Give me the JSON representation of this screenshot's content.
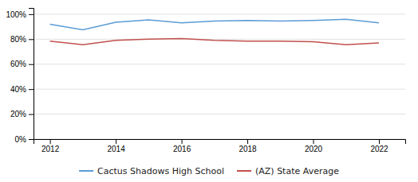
{
  "chart_data": {
    "type": "line",
    "x": [
      2012,
      2013,
      2014,
      2015,
      2016,
      2017,
      2018,
      2019,
      2020,
      2021,
      2022
    ],
    "series": [
      {
        "name": "Cactus Shadows High School",
        "color": "#5b9bd5",
        "values": [
          0.92,
          0.875,
          0.935,
          0.955,
          0.93,
          0.945,
          0.95,
          0.945,
          0.95,
          0.96,
          0.93
        ]
      },
      {
        "name": "(AZ) State Average",
        "color": "#c0504d",
        "values": [
          0.785,
          0.755,
          0.79,
          0.8,
          0.805,
          0.79,
          0.785,
          0.785,
          0.78,
          0.755,
          0.77
        ]
      }
    ],
    "xlim": [
      2011.5,
      2022.8
    ],
    "xticks": [
      2012,
      2014,
      2016,
      2018,
      2020,
      2022
    ],
    "ylim": [
      0.0,
      1.05
    ],
    "yticks": [
      {
        "value": 0.0,
        "label": "0%"
      },
      {
        "value": 0.2,
        "label": "20%"
      },
      {
        "value": 0.4,
        "label": "40%"
      },
      {
        "value": 0.6,
        "label": "60%"
      },
      {
        "value": 0.8,
        "label": "80%"
      },
      {
        "value": 1.0,
        "label": "100%"
      }
    ],
    "grid": true,
    "legend": "bottom"
  }
}
